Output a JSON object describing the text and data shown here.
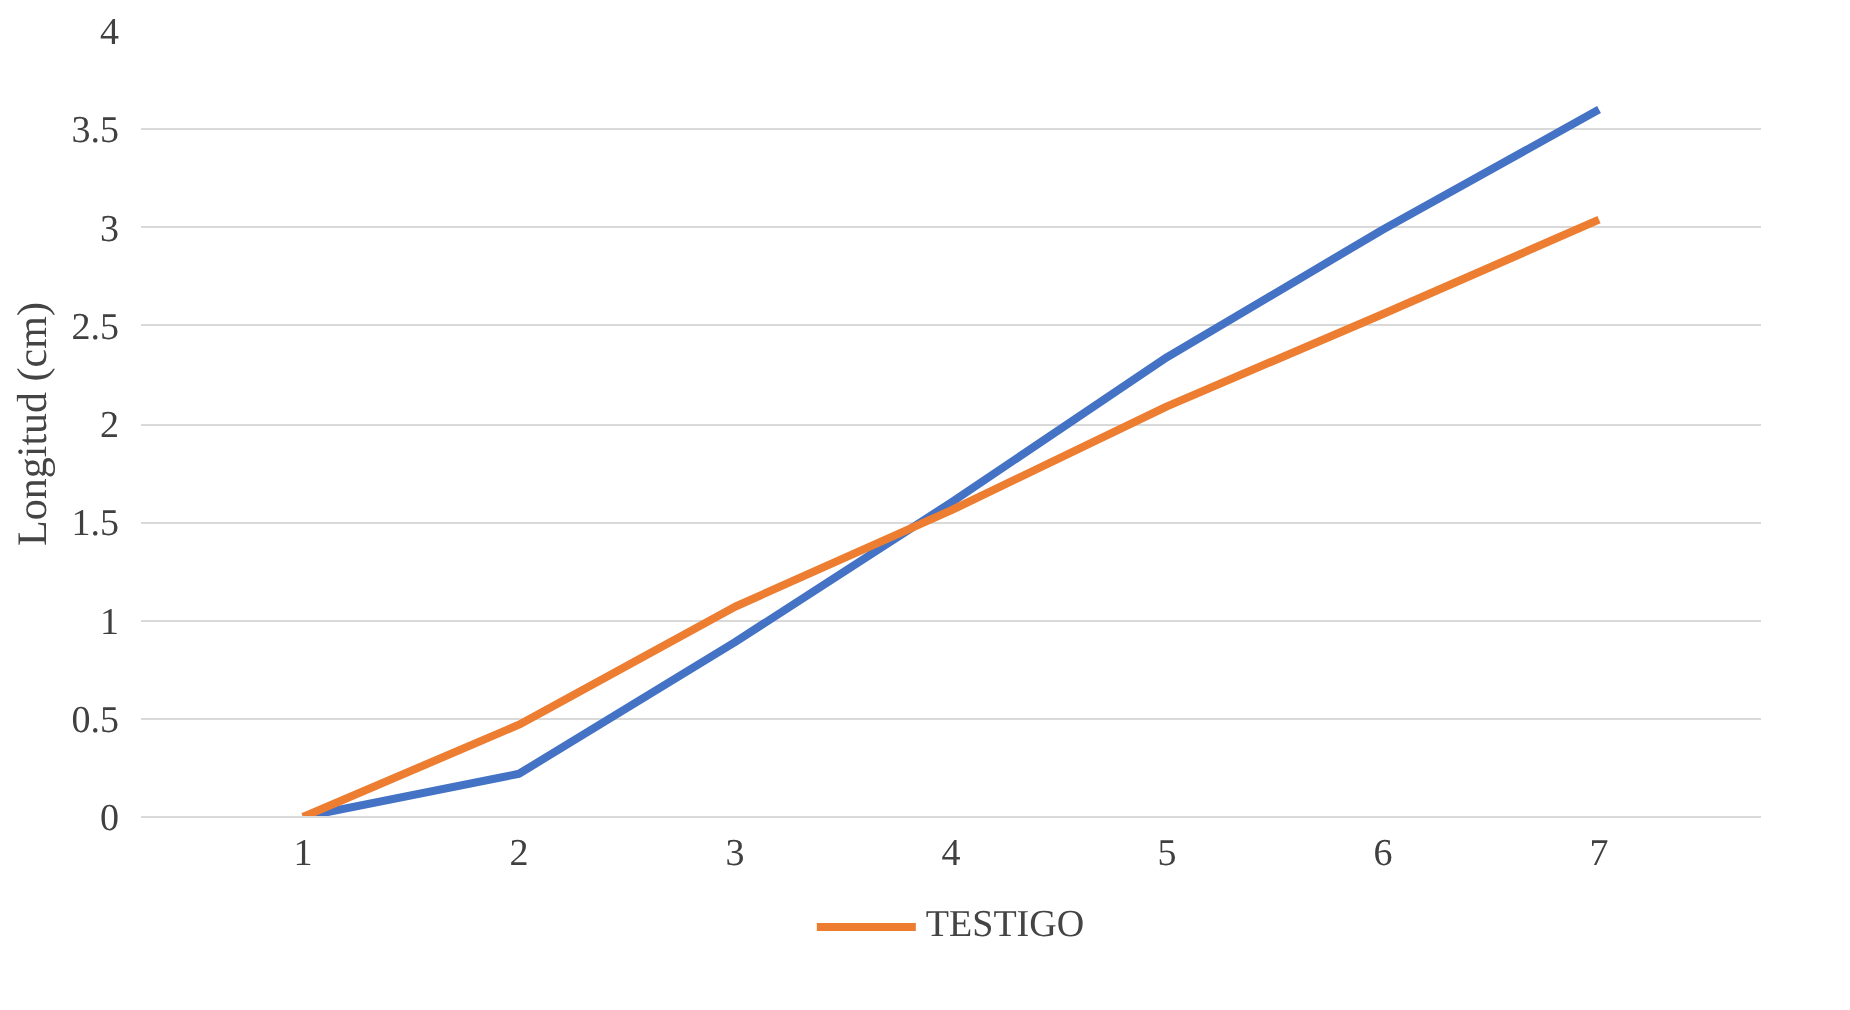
{
  "chart_data": {
    "type": "line",
    "ylabel": "Longitud (cm)",
    "categories": [
      "1",
      "2",
      "3",
      "4",
      "5",
      "6",
      "7"
    ],
    "series": [
      {
        "color": "#4472c4",
        "values": [
          0,
          0.22,
          0.89,
          1.6,
          2.34,
          2.99,
          3.6
        ]
      },
      {
        "name": "TESTIGO",
        "color": "#ed7d31",
        "values": [
          0,
          0.47,
          1.07,
          1.56,
          2.09,
          2.56,
          3.04
        ]
      }
    ],
    "ylim": [
      0,
      4
    ],
    "yticks": [
      0,
      0.5,
      1,
      1.5,
      2,
      2.5,
      3,
      3.5,
      4
    ],
    "grid": "y",
    "legend": "bottom",
    "marker": "none",
    "line_style": "solid"
  }
}
